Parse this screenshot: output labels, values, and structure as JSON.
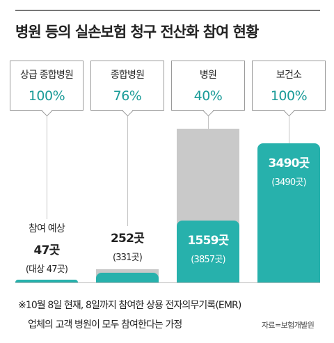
{
  "title": "병원 등의 실손보험 청구 전산화 참여 현황",
  "colors": {
    "accent": "#27b1ac",
    "accent_text": "#1a9b98",
    "total_bar": "#c9c9c9"
  },
  "chart_data": {
    "type": "bar",
    "title": "병원 등의 실손보험 청구 전산화 참여 현황",
    "categories": [
      "상급 종합병원",
      "종합병원",
      "병원",
      "보건소"
    ],
    "series": [
      {
        "values": [
          47,
          252,
          1559,
          3490
        ]
      },
      {
        "values": [
          47,
          331,
          3857,
          3490
        ]
      }
    ],
    "participation_rates": [
      "100%",
      "76%",
      "40%",
      "100%"
    ],
    "value_labels": [
      "47곳",
      "252곳",
      "1559곳",
      "3490곳"
    ],
    "total_labels": [
      "(대상 47곳)",
      "(331곳)",
      "(3857곳)",
      "(3490곳)"
    ],
    "extra_label": "참여 예상",
    "ylim": [
      0,
      3857
    ],
    "xlabel": "",
    "ylabel": "",
    "grid": false,
    "legend": "none"
  },
  "footnote": {
    "line1": "※10월 8일 현재, 8일까지 참여한 상용 전자의무기록(EMR)",
    "line2": "업체의 고객 병원이 모두 참여한다는 가정"
  },
  "source": "자료=보험개발원"
}
